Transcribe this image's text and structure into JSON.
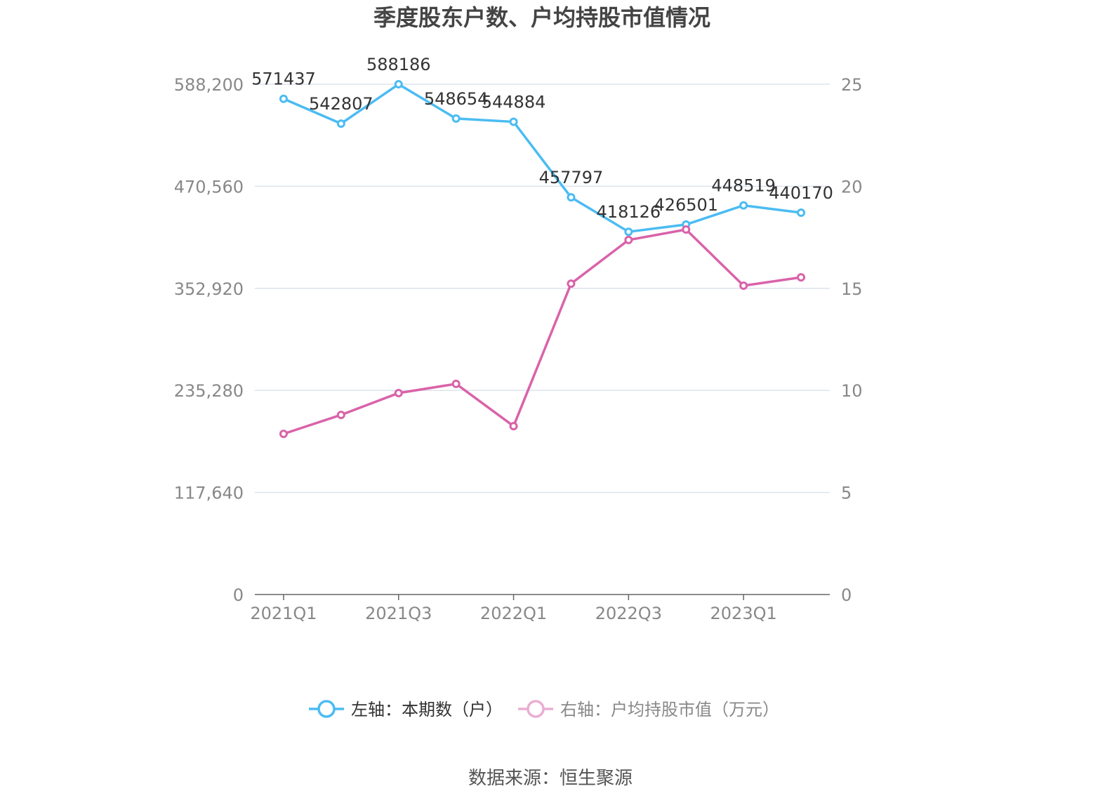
{
  "chart_data": {
    "type": "line",
    "title": "季度股东户数、户均持股市值情况",
    "categories": [
      "2021Q1",
      "2021Q2",
      "2021Q3",
      "2021Q4",
      "2022Q1",
      "2022Q2",
      "2022Q3",
      "2022Q4",
      "2023Q1",
      "2023Q2"
    ],
    "x_tick_labels": [
      "2021Q1",
      "2021Q3",
      "2022Q1",
      "2022Q3",
      "2023Q1"
    ],
    "left_axis": {
      "range": [
        0,
        588200
      ],
      "ticks": [
        "0",
        "117,640",
        "235,280",
        "352,920",
        "470,560",
        "588,200"
      ]
    },
    "right_axis": {
      "range": [
        0,
        25
      ],
      "ticks": [
        "0",
        "5",
        "10",
        "15",
        "20",
        "25"
      ]
    },
    "grid": true,
    "legend_position": "bottom",
    "series": [
      {
        "name": "左轴：本期数（户）",
        "axis": "left",
        "color": "#4bbcf2",
        "values": [
          571437,
          542807,
          588186,
          548654,
          544884,
          457797,
          418126,
          426501,
          448519,
          440170
        ],
        "show_labels": true
      },
      {
        "name": "右轴：户均持股市值（万元）",
        "axis": "right",
        "color": "#d963a9",
        "legend_color": "#eaaed2",
        "values": [
          7.87,
          8.8,
          9.87,
          10.32,
          8.25,
          15.23,
          17.37,
          17.88,
          15.13,
          15.54
        ],
        "show_labels": false
      }
    ],
    "source": "数据来源：恒生聚源"
  }
}
